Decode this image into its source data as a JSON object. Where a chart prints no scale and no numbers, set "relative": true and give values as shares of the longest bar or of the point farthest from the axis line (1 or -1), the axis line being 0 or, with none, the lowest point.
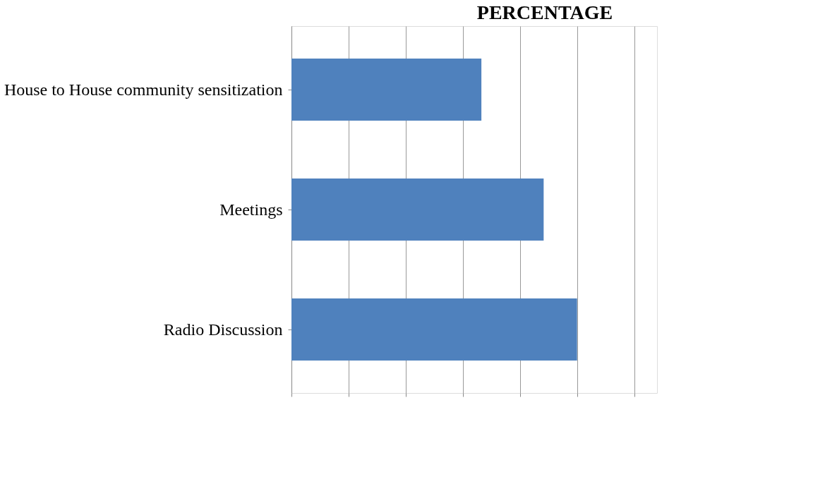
{
  "chart_data": {
    "type": "bar",
    "orientation": "horizontal",
    "relative": true,
    "title": "PERCENTAGE",
    "categories": [
      "House to House community sensitization",
      "Meetings",
      "Radio Discussion"
    ],
    "values": [
      0.665,
      0.883,
      1.0
    ],
    "color": "#4f81bd",
    "grid": "x"
  }
}
